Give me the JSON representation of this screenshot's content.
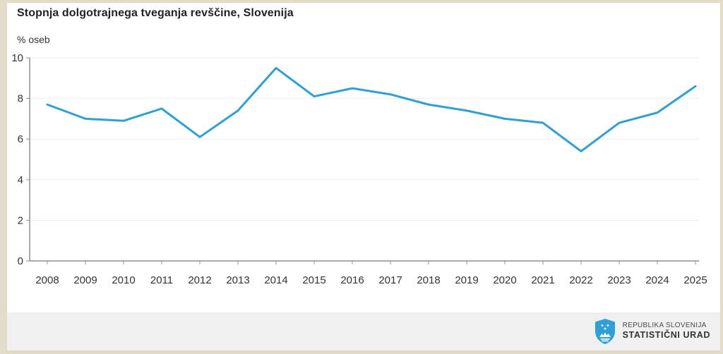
{
  "page": {
    "background_color": "#e2dbc7",
    "content_background": "#ffffff"
  },
  "chart": {
    "title": "Stopnja dolgotrajnega tveganja revščine, Slovenija",
    "unit_label": "% oseb"
  },
  "chart_data": {
    "type": "line",
    "title": "Stopnja dolgotrajnega tveganja revščine, Slovenija",
    "xlabel": "",
    "ylabel": "% oseb",
    "x": [
      2008,
      2009,
      2010,
      2011,
      2012,
      2013,
      2014,
      2015,
      2016,
      2017,
      2018,
      2019,
      2020,
      2021,
      2022,
      2023,
      2024,
      2025
    ],
    "series": [
      {
        "name": "Stopnja dolgotrajnega tveganja revščine",
        "values": [
          7.7,
          7.0,
          6.9,
          7.5,
          6.1,
          7.4,
          9.5,
          8.1,
          8.5,
          8.2,
          7.7,
          7.4,
          7.0,
          6.8,
          5.4,
          6.8,
          7.3,
          8.6
        ]
      }
    ],
    "ylim": [
      0,
      10
    ],
    "ytick_step": 2,
    "grid": true,
    "legend": false
  },
  "style": {
    "line_color": "#2f9fd6",
    "axis_color": "#8f8f8f",
    "grid_color": "#ededed",
    "tick_text_color": "#333333",
    "tick_font_size": 15
  },
  "footer": {
    "org_line1": "REPUBLIKA SLOVENIJA",
    "org_line2": "STATISTIČNI URAD",
    "logo_color": "#2f9fd6",
    "background": "#f0f0f0"
  }
}
